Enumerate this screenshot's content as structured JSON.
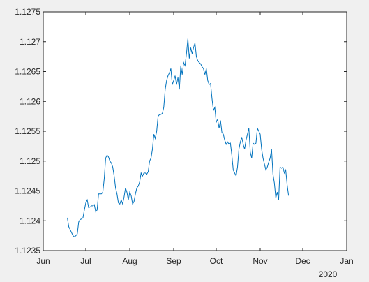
{
  "figure": {
    "background": "#f0f0f0",
    "axes_background": "#ffffff",
    "axis_color": "#262626"
  },
  "chart_data": {
    "type": "line",
    "title": "",
    "xlabel": "",
    "ylabel": "",
    "x_secondary_label": "2020",
    "x_ticks": [
      {
        "date": "2019-06-01",
        "label": "Jun"
      },
      {
        "date": "2019-07-01",
        "label": "Jul"
      },
      {
        "date": "2019-08-01",
        "label": "Aug"
      },
      {
        "date": "2019-09-01",
        "label": "Sep"
      },
      {
        "date": "2019-10-01",
        "label": "Oct"
      },
      {
        "date": "2019-11-01",
        "label": "Nov"
      },
      {
        "date": "2019-12-01",
        "label": "Dec"
      },
      {
        "date": "2020-01-01",
        "label": "Jan"
      }
    ],
    "y_ticks": [
      {
        "value": 1.1235,
        "label": "1.1235"
      },
      {
        "value": 1.124,
        "label": "1.124"
      },
      {
        "value": 1.1245,
        "label": "1.1245"
      },
      {
        "value": 1.125,
        "label": "1.125"
      },
      {
        "value": 1.1255,
        "label": "1.1255"
      },
      {
        "value": 1.126,
        "label": "1.126"
      },
      {
        "value": 1.1265,
        "label": "1.1265"
      },
      {
        "value": 1.127,
        "label": "1.127"
      },
      {
        "value": 1.1275,
        "label": "1.1275"
      }
    ],
    "xlim": [
      "2019-06-01",
      "2020-01-01"
    ],
    "ylim": [
      1.1235,
      1.1275
    ],
    "grid": false,
    "series": [
      {
        "color": "#0072bd",
        "points": [
          [
            "2019-06-18",
            1.12405
          ],
          [
            "2019-06-19",
            1.1239
          ],
          [
            "2019-06-20",
            1.12385
          ],
          [
            "2019-06-21",
            1.1238
          ],
          [
            "2019-06-22",
            1.12375
          ],
          [
            "2019-06-23",
            1.12373
          ],
          [
            "2019-06-24",
            1.12375
          ],
          [
            "2019-06-25",
            1.12378
          ],
          [
            "2019-06-26",
            1.12398
          ],
          [
            "2019-06-27",
            1.12402
          ],
          [
            "2019-06-28",
            1.12403
          ],
          [
            "2019-06-29",
            1.12405
          ],
          [
            "2019-06-30",
            1.12418
          ],
          [
            "2019-07-01",
            1.1243
          ],
          [
            "2019-07-02",
            1.12435
          ],
          [
            "2019-07-03",
            1.12422
          ],
          [
            "2019-07-04",
            1.12423
          ],
          [
            "2019-07-05",
            1.12425
          ],
          [
            "2019-07-06",
            1.12425
          ],
          [
            "2019-07-07",
            1.12427
          ],
          [
            "2019-07-08",
            1.12415
          ],
          [
            "2019-07-09",
            1.12418
          ],
          [
            "2019-07-10",
            1.12445
          ],
          [
            "2019-07-11",
            1.12445
          ],
          [
            "2019-07-12",
            1.12445
          ],
          [
            "2019-07-13",
            1.12448
          ],
          [
            "2019-07-14",
            1.1247
          ],
          [
            "2019-07-15",
            1.12505
          ],
          [
            "2019-07-16",
            1.1251
          ],
          [
            "2019-07-17",
            1.12507
          ],
          [
            "2019-07-18",
            1.125
          ],
          [
            "2019-07-19",
            1.12497
          ],
          [
            "2019-07-20",
            1.1249
          ],
          [
            "2019-07-21",
            1.12475
          ],
          [
            "2019-07-22",
            1.12455
          ],
          [
            "2019-07-23",
            1.12445
          ],
          [
            "2019-07-24",
            1.1243
          ],
          [
            "2019-07-25",
            1.12428
          ],
          [
            "2019-07-26",
            1.12435
          ],
          [
            "2019-07-27",
            1.12428
          ],
          [
            "2019-07-28",
            1.1244
          ],
          [
            "2019-07-29",
            1.12455
          ],
          [
            "2019-07-30",
            1.12448
          ],
          [
            "2019-07-31",
            1.12435
          ],
          [
            "2019-08-01",
            1.12448
          ],
          [
            "2019-08-02",
            1.12442
          ],
          [
            "2019-08-03",
            1.12428
          ],
          [
            "2019-08-04",
            1.12432
          ],
          [
            "2019-08-05",
            1.12445
          ],
          [
            "2019-08-06",
            1.12455
          ],
          [
            "2019-08-07",
            1.12458
          ],
          [
            "2019-08-08",
            1.12465
          ],
          [
            "2019-08-09",
            1.1248
          ],
          [
            "2019-08-10",
            1.12475
          ],
          [
            "2019-08-11",
            1.1248
          ],
          [
            "2019-08-12",
            1.1248
          ],
          [
            "2019-08-13",
            1.12478
          ],
          [
            "2019-08-14",
            1.12482
          ],
          [
            "2019-08-15",
            1.125
          ],
          [
            "2019-08-16",
            1.12505
          ],
          [
            "2019-08-17",
            1.1252
          ],
          [
            "2019-08-18",
            1.12545
          ],
          [
            "2019-08-19",
            1.12538
          ],
          [
            "2019-08-20",
            1.1255
          ],
          [
            "2019-08-21",
            1.12575
          ],
          [
            "2019-08-22",
            1.12578
          ],
          [
            "2019-08-23",
            1.12578
          ],
          [
            "2019-08-24",
            1.1258
          ],
          [
            "2019-08-25",
            1.1259
          ],
          [
            "2019-08-26",
            1.1262
          ],
          [
            "2019-08-27",
            1.12635
          ],
          [
            "2019-08-28",
            1.12643
          ],
          [
            "2019-08-29",
            1.12648
          ],
          [
            "2019-08-30",
            1.12655
          ],
          [
            "2019-08-31",
            1.12628
          ],
          [
            "2019-09-01",
            1.12635
          ],
          [
            "2019-09-02",
            1.12643
          ],
          [
            "2019-09-03",
            1.12628
          ],
          [
            "2019-09-04",
            1.1264
          ],
          [
            "2019-09-05",
            1.1262
          ],
          [
            "2019-09-06",
            1.1266
          ],
          [
            "2019-09-07",
            1.12645
          ],
          [
            "2019-09-08",
            1.12665
          ],
          [
            "2019-09-09",
            1.1266
          ],
          [
            "2019-09-10",
            1.1268
          ],
          [
            "2019-09-11",
            1.12705
          ],
          [
            "2019-09-12",
            1.12672
          ],
          [
            "2019-09-13",
            1.1269
          ],
          [
            "2019-09-14",
            1.1268
          ],
          [
            "2019-09-15",
            1.1269
          ],
          [
            "2019-09-16",
            1.12698
          ],
          [
            "2019-09-17",
            1.12675
          ],
          [
            "2019-09-18",
            1.12668
          ],
          [
            "2019-09-19",
            1.12665
          ],
          [
            "2019-09-20",
            1.12663
          ],
          [
            "2019-09-21",
            1.12658
          ],
          [
            "2019-09-22",
            1.12655
          ],
          [
            "2019-09-23",
            1.12645
          ],
          [
            "2019-09-24",
            1.12655
          ],
          [
            "2019-09-25",
            1.12635
          ],
          [
            "2019-09-26",
            1.12628
          ],
          [
            "2019-09-27",
            1.1263
          ],
          [
            "2019-09-28",
            1.12605
          ],
          [
            "2019-09-29",
            1.12585
          ],
          [
            "2019-09-30",
            1.1259
          ],
          [
            "2019-10-01",
            1.12565
          ],
          [
            "2019-10-02",
            1.1257
          ],
          [
            "2019-10-03",
            1.12555
          ],
          [
            "2019-10-04",
            1.12568
          ],
          [
            "2019-10-05",
            1.12548
          ],
          [
            "2019-10-06",
            1.12545
          ],
          [
            "2019-10-07",
            1.12535
          ],
          [
            "2019-10-08",
            1.12528
          ],
          [
            "2019-10-09",
            1.12532
          ],
          [
            "2019-10-10",
            1.12528
          ],
          [
            "2019-10-11",
            1.1253
          ],
          [
            "2019-10-12",
            1.1251
          ],
          [
            "2019-10-13",
            1.12485
          ],
          [
            "2019-10-14",
            1.1248
          ],
          [
            "2019-10-15",
            1.12475
          ],
          [
            "2019-10-16",
            1.1249
          ],
          [
            "2019-10-17",
            1.1252
          ],
          [
            "2019-10-18",
            1.12532
          ],
          [
            "2019-10-19",
            1.1254
          ],
          [
            "2019-10-20",
            1.12528
          ],
          [
            "2019-10-21",
            1.1252
          ],
          [
            "2019-10-22",
            1.12535
          ],
          [
            "2019-10-23",
            1.12545
          ],
          [
            "2019-10-24",
            1.12555
          ],
          [
            "2019-10-25",
            1.12515
          ],
          [
            "2019-10-26",
            1.12505
          ],
          [
            "2019-10-27",
            1.1253
          ],
          [
            "2019-10-28",
            1.12528
          ],
          [
            "2019-10-29",
            1.1253
          ],
          [
            "2019-10-30",
            1.12555
          ],
          [
            "2019-10-31",
            1.1255
          ],
          [
            "2019-11-01",
            1.12545
          ],
          [
            "2019-11-02",
            1.1252
          ],
          [
            "2019-11-03",
            1.12505
          ],
          [
            "2019-11-04",
            1.12495
          ],
          [
            "2019-11-05",
            1.12485
          ],
          [
            "2019-11-06",
            1.1249
          ],
          [
            "2019-11-07",
            1.12498
          ],
          [
            "2019-11-08",
            1.12505
          ],
          [
            "2019-11-09",
            1.1252
          ],
          [
            "2019-11-10",
            1.12478
          ],
          [
            "2019-11-11",
            1.12463
          ],
          [
            "2019-11-12",
            1.12438
          ],
          [
            "2019-11-13",
            1.12448
          ],
          [
            "2019-11-14",
            1.12435
          ],
          [
            "2019-11-15",
            1.1249
          ],
          [
            "2019-11-16",
            1.12488
          ],
          [
            "2019-11-17",
            1.1249
          ],
          [
            "2019-11-18",
            1.1248
          ],
          [
            "2019-11-19",
            1.12485
          ],
          [
            "2019-11-20",
            1.1246
          ],
          [
            "2019-11-21",
            1.12442
          ]
        ]
      }
    ]
  }
}
